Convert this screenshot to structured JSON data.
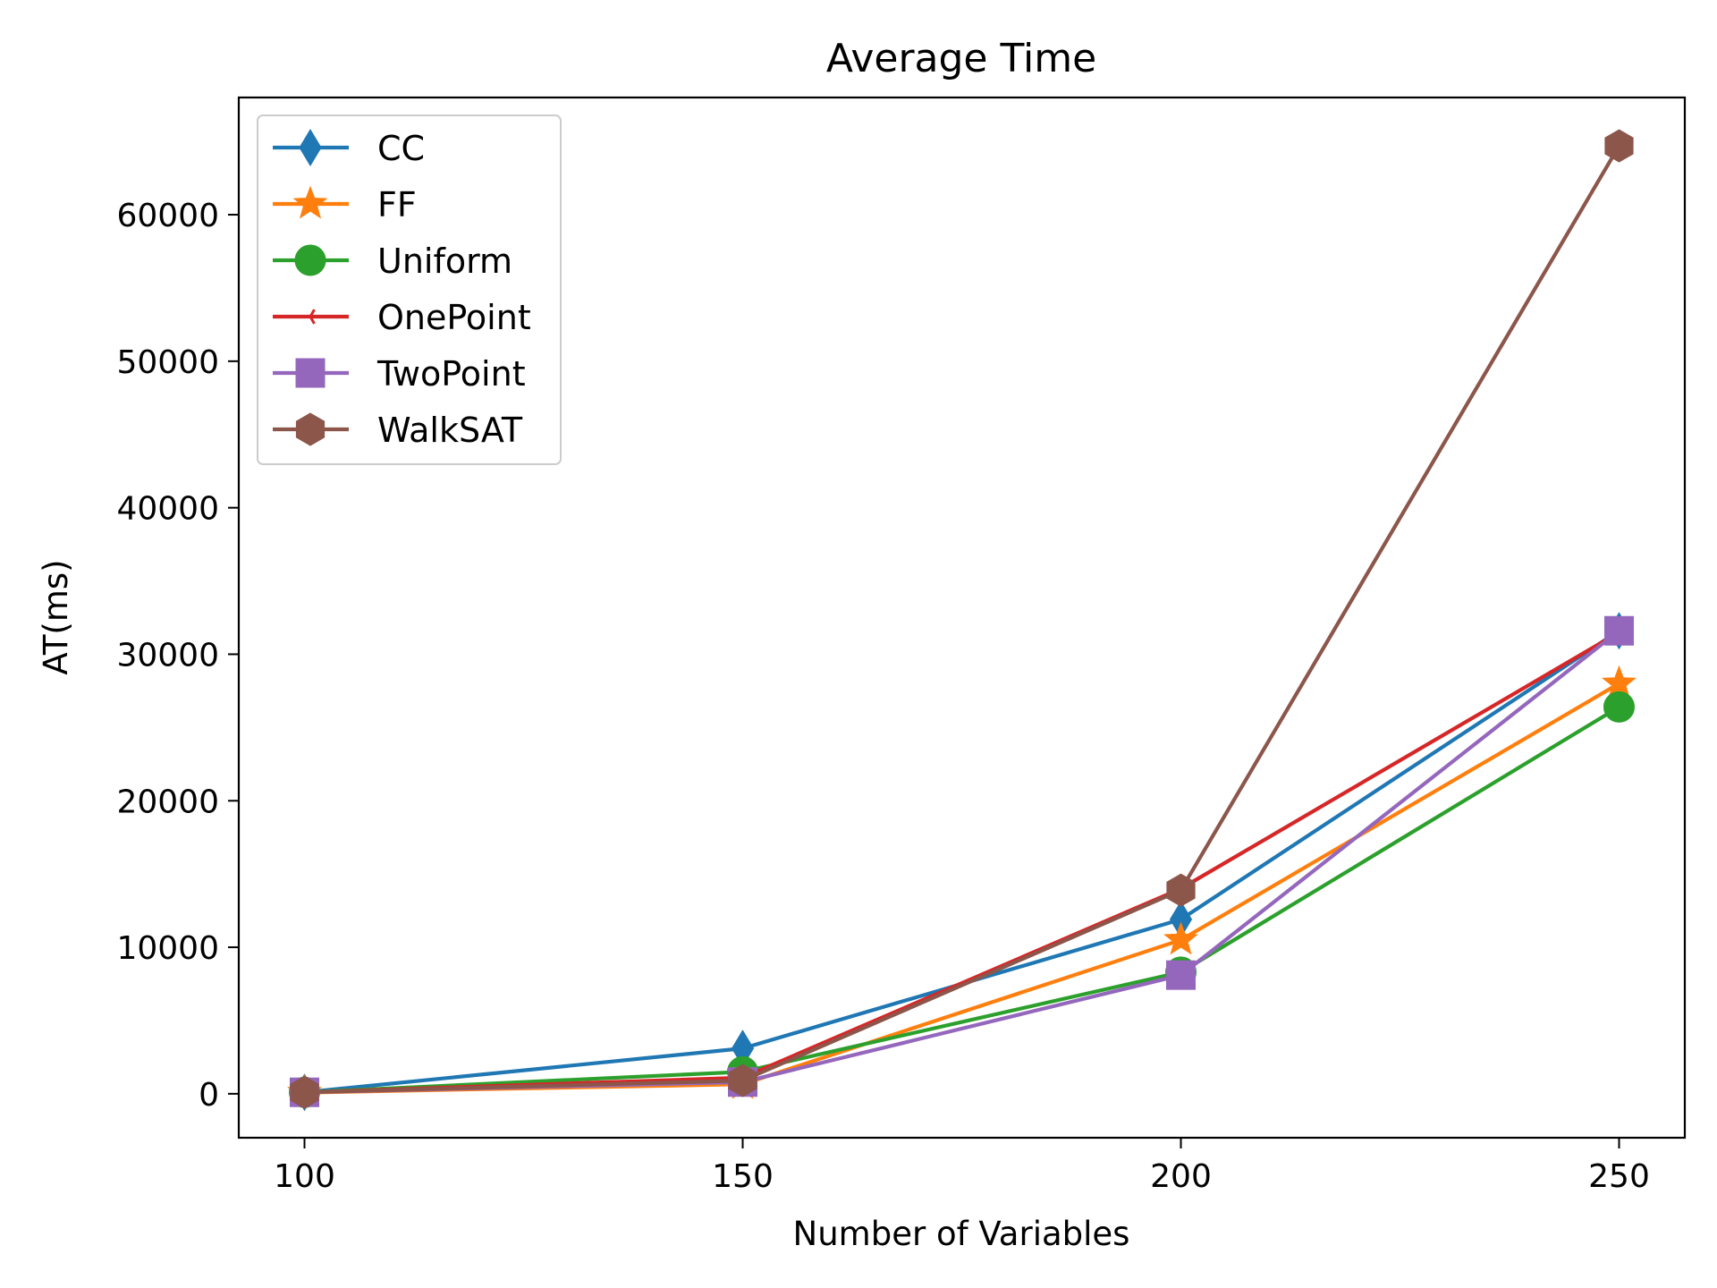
{
  "chart_data": {
    "type": "line",
    "title": "Average Time",
    "xlabel": "Number of Variables",
    "ylabel": "AT(ms)",
    "x": [
      100,
      150,
      200,
      250
    ],
    "x_ticks": [
      "100",
      "150",
      "200",
      "250"
    ],
    "y_ticks": [
      "0",
      "10000",
      "20000",
      "30000",
      "40000",
      "50000",
      "60000"
    ],
    "xlim": [
      92.5,
      257.5
    ],
    "ylim": [
      -3000,
      68000
    ],
    "grid": false,
    "legend_position": "top-left",
    "series": [
      {
        "name": "CC",
        "color": "#1f77b4",
        "marker": "diamond",
        "values": [
          100,
          3100,
          11900,
          31600
        ]
      },
      {
        "name": "FF",
        "color": "#ff7f0e",
        "marker": "star",
        "values": [
          80,
          650,
          10500,
          28000
        ]
      },
      {
        "name": "Uniform",
        "color": "#2ca02c",
        "marker": "circle",
        "values": [
          100,
          1500,
          8300,
          26400
        ]
      },
      {
        "name": "OnePoint",
        "color": "#d62728",
        "marker": "tri-left",
        "values": [
          100,
          1100,
          14000,
          31500
        ]
      },
      {
        "name": "TwoPoint",
        "color": "#9467bd",
        "marker": "square",
        "values": [
          100,
          800,
          8100,
          31600
        ]
      },
      {
        "name": "WalkSAT",
        "color": "#8c564b",
        "marker": "hexagon",
        "values": [
          100,
          900,
          13900,
          64700
        ]
      }
    ]
  }
}
